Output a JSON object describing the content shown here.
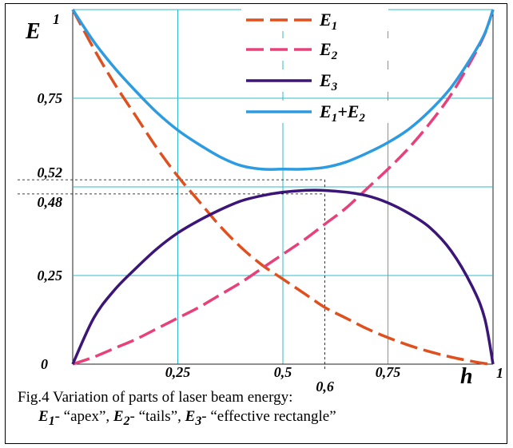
{
  "chart_data": {
    "type": "line",
    "title": "",
    "xlabel": "h",
    "ylabel": "E",
    "xlim": [
      0,
      1
    ],
    "ylim": [
      0,
      1
    ],
    "grid": true,
    "legend_position": "top-center",
    "x_ticks": [
      {
        "value": 0.25,
        "label": "0,25"
      },
      {
        "value": 0.5,
        "label": "0,5"
      },
      {
        "value": 0.6,
        "label": "0,6"
      },
      {
        "value": 0.75,
        "label": "0,75"
      },
      {
        "value": 1,
        "label": "1"
      }
    ],
    "y_ticks": [
      {
        "value": 0,
        "label": "0"
      },
      {
        "value": 0.25,
        "label": "0,25"
      },
      {
        "value": 0.48,
        "label": "0,48"
      },
      {
        "value": 0.52,
        "label": "0,52"
      },
      {
        "value": 0.75,
        "label": "0,75"
      },
      {
        "value": 1,
        "label": "1"
      }
    ],
    "x": [
      0,
      0.05,
      0.1,
      0.15,
      0.2,
      0.25,
      0.3,
      0.35,
      0.4,
      0.45,
      0.5,
      0.55,
      0.6,
      0.65,
      0.7,
      0.75,
      0.8,
      0.85,
      0.9,
      0.95,
      0.98,
      1
    ],
    "series": [
      {
        "name": "E",
        "sub": "1",
        "color": "#e0501e",
        "dash": "dashed",
        "values": [
          1,
          0.89,
          0.79,
          0.7,
          0.61,
          0.53,
          0.46,
          0.39,
          0.33,
          0.28,
          0.24,
          0.2,
          0.16,
          0.13,
          0.1,
          0.075,
          0.053,
          0.035,
          0.02,
          0.008,
          0.002,
          0
        ]
      },
      {
        "name": "E",
        "sub": "2",
        "color": "#e8407a",
        "dash": "dashed",
        "values": [
          0,
          0.02,
          0.045,
          0.07,
          0.1,
          0.13,
          0.16,
          0.195,
          0.23,
          0.27,
          0.31,
          0.35,
          0.395,
          0.44,
          0.495,
          0.55,
          0.61,
          0.68,
          0.76,
          0.86,
          0.93,
          1
        ]
      },
      {
        "name": "E",
        "sub": "3",
        "color": "#3b1578",
        "dash": "solid",
        "values": [
          0,
          0.13,
          0.21,
          0.27,
          0.325,
          0.37,
          0.405,
          0.435,
          0.46,
          0.475,
          0.485,
          0.49,
          0.49,
          0.485,
          0.475,
          0.455,
          0.425,
          0.385,
          0.32,
          0.22,
          0.13,
          0
        ]
      },
      {
        "name": "E",
        "sub": "1",
        "suffix": "+E",
        "sub2": "2",
        "color": "#2c9be0",
        "dash": "solid",
        "values": [
          1,
          0.91,
          0.835,
          0.77,
          0.71,
          0.66,
          0.62,
          0.585,
          0.56,
          0.55,
          0.55,
          0.55,
          0.555,
          0.57,
          0.595,
          0.625,
          0.663,
          0.715,
          0.78,
          0.868,
          0.932,
          1
        ]
      }
    ],
    "annotations": [
      {
        "type": "hline-dashed",
        "y": 0.52,
        "x_end": 0.6
      },
      {
        "type": "hline-dashed",
        "y": 0.48,
        "x_end": 0.6
      },
      {
        "type": "vline-dashed",
        "x": 0.6,
        "y_end": 0.52
      }
    ]
  },
  "y_axis_label": {
    "letter": "E",
    "superscript": "1"
  },
  "x_axis_label": {
    "letter": "h",
    "superscript": "1"
  },
  "caption": {
    "line1": "Fig.4 Variation of parts of laser beam energy:",
    "items": [
      {
        "sym": "E",
        "sub": "1",
        "text": "- “apex”, "
      },
      {
        "sym": "E",
        "sub": "2",
        "text": "- “tails”, "
      },
      {
        "sym": "E",
        "sub": "3",
        "text": "- “effective rectangle”"
      }
    ]
  }
}
